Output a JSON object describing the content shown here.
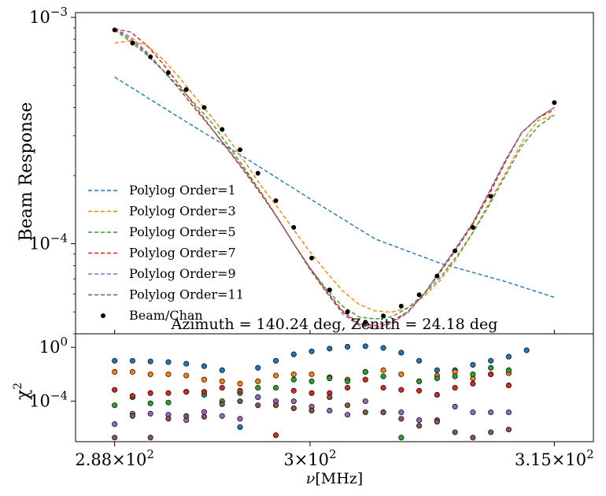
{
  "chart_data": [
    {
      "type": "line",
      "panel": "top",
      "ylabel": "Beam Response",
      "yscale": "log",
      "ylim": [
        4e-05,
        0.00105
      ],
      "xlim": [
        285.6,
        317.4
      ],
      "yticks": [
        {
          "value": 0.001,
          "base": "10",
          "exp": "−3"
        },
        {
          "value": 0.0001,
          "base": "10",
          "exp": "−4"
        }
      ],
      "annotation": "Azimuth = 140.24 deg, Zenith = 24.18 deg",
      "legend_position": "lower-left",
      "x": [
        288.0,
        289.1,
        290.2,
        291.3,
        292.4,
        293.5,
        294.6,
        295.7,
        296.8,
        297.9,
        299.0,
        300.1,
        301.2,
        302.3,
        303.4,
        304.5,
        305.6,
        306.7,
        307.8,
        308.9,
        310.0,
        311.1,
        312.2,
        313.3,
        314.4,
        315.0
      ],
      "beam": [
        0.00088,
        0.00077,
        0.00067,
        0.00057,
        0.00048,
        0.0004,
        0.00032,
        0.00026,
        0.000205,
        0.000155,
        0.000118,
        8.65e-05,
        6.25e-05,
        5e-05,
        4.5e-05,
        4.8e-05,
        5.3e-05,
        5.95e-05,
        7.2e-05,
        9.3e-05,
        0.000118,
        0.000162,
        0.00042
      ],
      "beam_x": [
        288.0,
        289.1,
        290.2,
        291.3,
        292.4,
        293.5,
        294.6,
        295.7,
        296.8,
        297.9,
        299.0,
        300.1,
        301.2,
        302.3,
        303.4,
        304.5,
        305.6,
        306.7,
        307.8,
        308.9,
        310.0,
        311.1,
        315.0
      ],
      "series": [
        {
          "name": "Polylog Order=1",
          "color": "#1f77b4",
          "points": [
            [
              288.0,
              0.000545
            ],
            [
              292.0,
              0.00036
            ],
            [
              296.0,
              0.00024
            ],
            [
              300.0,
              0.000158
            ],
            [
              304.0,
              0.000105
            ],
            [
              308.0,
              8.2e-05
            ],
            [
              312.0,
              6.8e-05
            ],
            [
              315.0,
              5.8e-05
            ]
          ]
        },
        {
          "name": "Polylog Order=3",
          "color": "#ff7f0e",
          "points": [
            [
              288.0,
              0.00077
            ],
            [
              289.0,
              0.00079
            ],
            [
              290.0,
              0.00075
            ],
            [
              291.0,
              0.00065
            ],
            [
              292.0,
              0.00054
            ],
            [
              293.0,
              0.00044
            ],
            [
              294.0,
              0.00036
            ],
            [
              295.0,
              0.00029
            ],
            [
              296.0,
              0.00023
            ],
            [
              297.0,
              0.00018
            ],
            [
              298.0,
              0.000145
            ],
            [
              299.0,
              0.000115
            ],
            [
              300.0,
              9.2e-05
            ],
            [
              301.0,
              7.5e-05
            ],
            [
              302.0,
              6.2e-05
            ],
            [
              303.0,
              5.4e-05
            ],
            [
              304.0,
              5.05e-05
            ],
            [
              305.0,
              4.98e-05
            ],
            [
              306.0,
              5.2e-05
            ],
            [
              307.0,
              5.85e-05
            ],
            [
              308.0,
              6.9e-05
            ],
            [
              309.0,
              8.6e-05
            ],
            [
              310.0,
              0.000112
            ],
            [
              311.0,
              0.000152
            ],
            [
              312.0,
              0.000205
            ],
            [
              313.0,
              0.00028
            ],
            [
              314.0,
              0.00035
            ],
            [
              315.0,
              0.00037
            ]
          ]
        },
        {
          "name": "Polylog Order=5",
          "color": "#2ca02c",
          "points": [
            [
              288.0,
              0.00088
            ],
            [
              289.0,
              0.00078
            ],
            [
              290.0,
              0.00068
            ],
            [
              291.0,
              0.00058
            ],
            [
              292.0,
              0.00049
            ],
            [
              293.0,
              0.00041
            ],
            [
              294.0,
              0.00034
            ],
            [
              295.0,
              0.00027
            ],
            [
              296.0,
              0.000215
            ],
            [
              297.0,
              0.000168
            ],
            [
              298.0,
              0.00013
            ],
            [
              299.0,
              0.0001
            ],
            [
              300.0,
              7.8e-05
            ],
            [
              301.0,
              6.3e-05
            ],
            [
              302.0,
              5.3e-05
            ],
            [
              303.0,
              4.75e-05
            ],
            [
              304.0,
              4.65e-05
            ],
            [
              305.0,
              4.75e-05
            ],
            [
              306.0,
              5.2e-05
            ],
            [
              307.0,
              6e-05
            ],
            [
              308.0,
              7.1e-05
            ],
            [
              309.0,
              8.8e-05
            ],
            [
              310.0,
              0.000112
            ],
            [
              311.0,
              0.000148
            ],
            [
              312.0,
              0.0002
            ],
            [
              313.0,
              0.00027
            ],
            [
              314.0,
              0.00033
            ],
            [
              315.0,
              0.00037
            ]
          ]
        },
        {
          "name": "Polylog Order=7",
          "color": "#d62728",
          "points": [
            [
              288.0,
              0.00089
            ],
            [
              289.0,
              0.00086
            ],
            [
              290.0,
              0.00075
            ],
            [
              291.0,
              0.00062
            ],
            [
              292.0,
              0.0005
            ],
            [
              293.0,
              0.0004
            ],
            [
              294.0,
              0.00032
            ],
            [
              295.0,
              0.000258
            ],
            [
              296.0,
              0.000207
            ],
            [
              297.0,
              0.000165
            ],
            [
              298.0,
              0.00013
            ],
            [
              299.0,
              0.0001
            ],
            [
              300.0,
              7.8e-05
            ],
            [
              301.0,
              6.2e-05
            ],
            [
              302.0,
              5.05e-05
            ],
            [
              303.0,
              4.45e-05
            ],
            [
              304.0,
              4.35e-05
            ],
            [
              305.0,
              4.55e-05
            ],
            [
              306.0,
              5e-05
            ],
            [
              307.0,
              6e-05
            ],
            [
              308.0,
              7.5e-05
            ],
            [
              309.0,
              9.5e-05
            ],
            [
              310.0,
              0.000122
            ],
            [
              311.0,
              0.000165
            ],
            [
              312.0,
              0.00023
            ],
            [
              313.0,
              0.00031
            ],
            [
              314.0,
              0.00036
            ],
            [
              315.0,
              0.00039
            ]
          ]
        },
        {
          "name": "Polylog Order=9",
          "color": "#9467bd",
          "points": [
            [
              288.0,
              0.00089
            ],
            [
              289.0,
              0.00082
            ],
            [
              290.0,
              0.0007
            ],
            [
              291.0,
              0.00058
            ],
            [
              292.0,
              0.00048
            ],
            [
              293.0,
              0.00039
            ],
            [
              294.0,
              0.00032
            ],
            [
              295.0,
              0.00026
            ],
            [
              296.0,
              0.00021
            ],
            [
              297.0,
              0.000168
            ],
            [
              298.0,
              0.00013
            ],
            [
              299.0,
              0.0001
            ],
            [
              300.0,
              7.7e-05
            ],
            [
              301.0,
              6.1e-05
            ],
            [
              302.0,
              4.9e-05
            ],
            [
              303.0,
              4.35e-05
            ],
            [
              304.0,
              4.2e-05
            ],
            [
              305.0,
              4.45e-05
            ],
            [
              306.0,
              4.95e-05
            ],
            [
              307.0,
              6e-05
            ],
            [
              308.0,
              7.6e-05
            ],
            [
              309.0,
              9.7e-05
            ],
            [
              310.0,
              0.000124
            ],
            [
              311.0,
              0.00017
            ],
            [
              312.0,
              0.000235
            ],
            [
              313.0,
              0.00031
            ],
            [
              314.0,
              0.00036
            ],
            [
              315.0,
              0.0004
            ]
          ]
        },
        {
          "name": "Polylog Order=11",
          "color": "#8c564b",
          "points": [
            [
              288.0,
              0.00089
            ],
            [
              289.0,
              0.0008
            ],
            [
              290.0,
              0.00069
            ],
            [
              291.0,
              0.00058
            ],
            [
              292.0,
              0.00048
            ],
            [
              293.0,
              0.00039
            ],
            [
              294.0,
              0.00032
            ],
            [
              295.0,
              0.00026
            ],
            [
              296.0,
              0.00021
            ],
            [
              297.0,
              0.000168
            ],
            [
              298.0,
              0.00013
            ],
            [
              299.0,
              0.0001
            ],
            [
              300.0,
              7.7e-05
            ],
            [
              301.0,
              6.1e-05
            ],
            [
              302.0,
              5e-05
            ],
            [
              303.0,
              4.4e-05
            ],
            [
              304.0,
              4.25e-05
            ],
            [
              305.0,
              4.5e-05
            ],
            [
              306.0,
              5e-05
            ],
            [
              307.0,
              6e-05
            ],
            [
              308.0,
              7.6e-05
            ],
            [
              309.0,
              9.6e-05
            ],
            [
              310.0,
              0.000123
            ],
            [
              311.0,
              0.000168
            ],
            [
              312.0,
              0.000232
            ],
            [
              313.0,
              0.00031
            ],
            [
              314.0,
              0.00036
            ],
            [
              315.0,
              0.0004
            ]
          ]
        }
      ],
      "legend": [
        "Polylog Order=1",
        "Polylog Order=3",
        "Polylog Order=5",
        "Polylog Order=7",
        "Polylog Order=9",
        "Polylog Order=11",
        "Beam/Chan"
      ]
    },
    {
      "type": "scatter",
      "panel": "bottom",
      "ylabel": "χ",
      "ylabel_sup": "2",
      "yscale": "log",
      "ylim": [
        1e-07,
        10
      ],
      "yticks": [
        {
          "value": 1,
          "base": "10",
          "exp": "0"
        },
        {
          "value": 0.0001,
          "base": "10",
          "exp": "−4"
        }
      ],
      "xlabel": "ν",
      "xlabel_unit": "[MHz]",
      "xlim": [
        285.6,
        317.4
      ],
      "xticks": [
        {
          "value": 288,
          "mant": "2.88×10",
          "exp": "2"
        },
        {
          "value": 300,
          "mant": "3×10",
          "exp": "2"
        },
        {
          "value": 315,
          "mant": "3.15×10",
          "exp": "2"
        }
      ],
      "x": [
        288.0,
        289.1,
        290.2,
        291.3,
        292.4,
        293.5,
        294.6,
        295.7,
        296.8,
        297.9,
        299.0,
        300.1,
        301.2,
        302.3,
        303.4,
        304.5,
        305.6,
        306.7,
        307.8,
        308.9,
        310.0,
        311.1,
        312.2,
        313.3,
        314.4,
        315.0
      ],
      "series": [
        {
          "name": "Polylog Order=1",
          "color": "#1f77b4",
          "values": [
            0.1,
            0.1,
            0.09,
            0.08,
            0.06,
            0.04,
            0.02,
            1.2e-06,
            0.03,
            0.1,
            0.3,
            0.5,
            0.8,
            1.1,
            1.2,
            0.9,
            0.4,
            0.1,
            0.02,
            0.02,
            0.05,
            0.1,
            0.2,
            0.6,
            null,
            null
          ]
        },
        {
          "name": "Polylog Order=3",
          "color": "#ff7f0e",
          "values": [
            0.015,
            0.015,
            0.01,
            0.01,
            0.008,
            0.004,
            0.003,
            0.002,
            0.003,
            0.008,
            0.01,
            0.01,
            0.006,
            0.004,
            0.015,
            0.02,
            0.01,
            0.003,
            0.008,
            0.015,
            0.005,
            0.01,
            0.012,
            null,
            null,
            null
          ]
        },
        {
          "name": "Polylog Order=5",
          "color": "#2ca02c",
          "values": [
            5e-05,
            0.0002,
            7e-05,
            8e-05,
            0.0005,
            0.0003,
            0.0001,
            0.0004,
            0.001,
            0.001,
            0.004,
            0.003,
            0.005,
            0.003,
            0.015,
            0.007,
            2e-07,
            0.003,
            0.005,
            0.007,
            0.01,
            0.03,
            0.02,
            null,
            null,
            null
          ]
        },
        {
          "name": "Polylog Order=7",
          "color": "#d62728",
          "values": [
            0.0007,
            0.00025,
            0.0004,
            0.0004,
            0.0005,
            0.0005,
            0.001,
            0.0006,
            0.0002,
            3e-07,
            0.0006,
            0.0004,
            0.0004,
            0.001,
            0.004,
            0.001,
            0.0007,
            0.0006,
            0.0003,
            0.001,
            0.002,
            0.01,
            0.0015,
            null,
            null,
            null
          ]
        },
        {
          "name": "Polylog Order=9",
          "color": "#9467bd",
          "values": [
            2e-06,
            1.2e-05,
            1.2e-05,
            1e-05,
            4e-06,
            1.6e-05,
            8e-06,
            5e-06,
            0.0002,
            0.0001,
            0.0001,
            4e-05,
            2e-05,
            1e-05,
            0.0001,
            1.5e-05,
            1.5e-05,
            4e-06,
            4e-06,
            4e-05,
            1.5e-05,
            1.5e-05,
            1.5e-05,
            null,
            null,
            null
          ]
        },
        {
          "name": "Polylog Order=11",
          "color": "#8c564b",
          "values": [
            2e-07,
            8e-06,
            2e-07,
            5e-06,
            8e-06,
            7e-06,
            6e-05,
            0.0001,
            5e-05,
            5e-05,
            3e-05,
            2e-05,
            0.0002,
            5e-05,
            1.5e-05,
            1.5e-05,
            5e-06,
            1.5e-06,
            3e-06,
            5e-07,
            2e-07,
            5e-07,
            8e-07,
            null,
            null,
            null
          ]
        }
      ]
    }
  ]
}
